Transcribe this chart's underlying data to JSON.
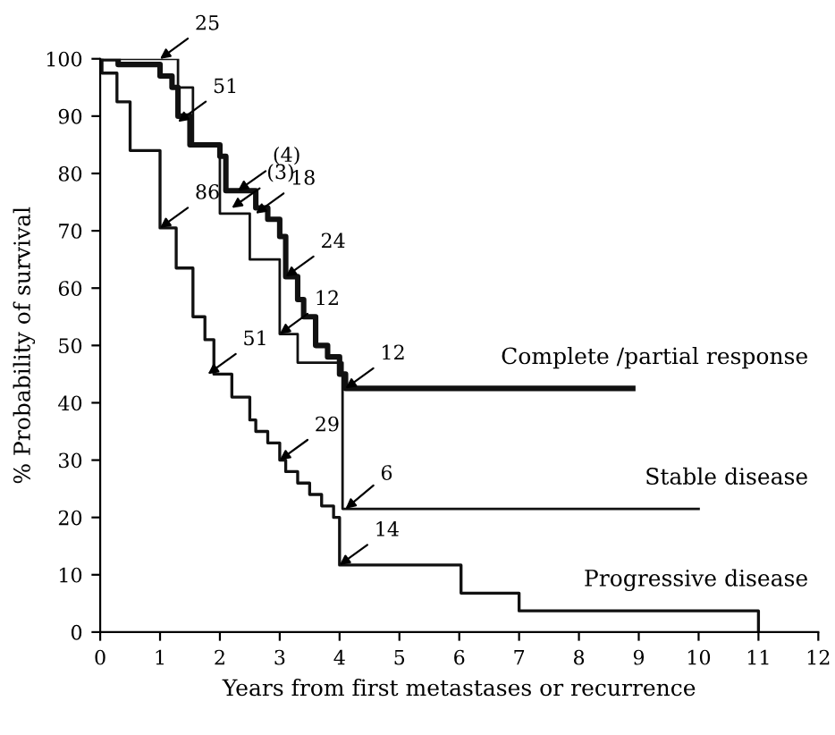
{
  "chart_data": {
    "type": "step",
    "xlabel": "Years from first metastases or recurrence",
    "ylabel": "% Probability of survival",
    "xlim": [
      0,
      12
    ],
    "ylim": [
      0,
      100
    ],
    "xticks": [
      0,
      1,
      2,
      3,
      4,
      5,
      6,
      7,
      8,
      9,
      10,
      11,
      12
    ],
    "yticks": [
      0,
      10,
      20,
      30,
      40,
      50,
      60,
      70,
      80,
      90,
      100
    ],
    "grid": false,
    "legend": false,
    "line_style": "solid",
    "marker": "none",
    "series": [
      {
        "name": "Complete /partial response",
        "color": "#111111",
        "x": [
          0,
          0.3,
          1.0,
          1.2,
          1.3,
          1.5,
          1.9,
          2.0,
          2.1,
          2.5,
          2.6,
          2.8,
          3.0,
          3.1,
          3.3,
          3.4,
          3.6,
          3.8,
          4.0,
          4.1,
          8.9
        ],
        "values": [
          100,
          99,
          97,
          95,
          90,
          85,
          85,
          83,
          77,
          77,
          74,
          72,
          69,
          62,
          58,
          55,
          50,
          48,
          45,
          42.5,
          42.5
        ]
      },
      {
        "name": "Stable disease",
        "color": "#111111",
        "x": [
          0,
          1.3,
          1.55,
          2.0,
          2.5,
          3.0,
          3.3,
          4.05,
          10.0
        ],
        "values": [
          100,
          95,
          85,
          73,
          65,
          52,
          47,
          21.5,
          21.5
        ]
      },
      {
        "name": "Progressive disease",
        "color": "#111111",
        "x": [
          0,
          0.03,
          0.28,
          0.5,
          1.0,
          1.27,
          1.55,
          1.75,
          1.9,
          2.2,
          2.5,
          2.6,
          2.8,
          3.0,
          3.1,
          3.3,
          3.5,
          3.7,
          3.9,
          4.0,
          6.03,
          7.0,
          11.0,
          11.0
        ],
        "values": [
          100,
          97.5,
          92.5,
          84,
          70.5,
          63.5,
          55,
          51,
          45,
          41,
          37,
          35,
          33,
          30,
          28,
          26,
          24,
          22,
          20,
          11.7,
          6.8,
          3.7,
          3.7,
          0
        ]
      }
    ],
    "annotations": [
      {
        "text": "25",
        "x": 1.0,
        "y": 100
      },
      {
        "text": "51",
        "x": 1.3,
        "y": 89
      },
      {
        "text": "(4)",
        "x": 2.3,
        "y": 77
      },
      {
        "text": "(3)",
        "x": 2.2,
        "y": 74
      },
      {
        "text": "18",
        "x": 2.6,
        "y": 73
      },
      {
        "text": "24",
        "x": 3.1,
        "y": 62
      },
      {
        "text": "86",
        "x": 1.0,
        "y": 70.5
      },
      {
        "text": "12",
        "x": 3.0,
        "y": 52
      },
      {
        "text": "12",
        "x": 4.1,
        "y": 42.5
      },
      {
        "text": "51",
        "x": 1.8,
        "y": 45
      },
      {
        "text": "29",
        "x": 3.0,
        "y": 30
      },
      {
        "text": "6",
        "x": 4.1,
        "y": 21.5
      },
      {
        "text": "14",
        "x": 4.0,
        "y": 11.7
      }
    ]
  }
}
